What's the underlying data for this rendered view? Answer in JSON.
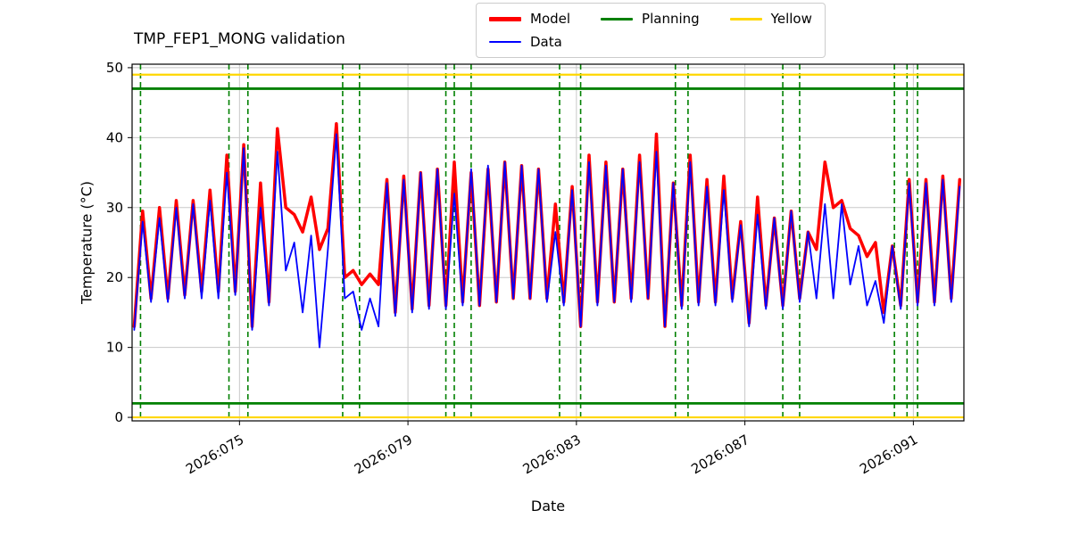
{
  "chart_data": {
    "type": "line",
    "title": "TMP_FEP1_MONG validation",
    "xlabel": "Date",
    "ylabel": "Temperature (°C)",
    "grid": true,
    "xlim": [
      72.45,
      92.2
    ],
    "ylim": [
      -0.5,
      50.5
    ],
    "xticks": {
      "values": [
        75,
        79,
        83,
        87,
        91
      ],
      "labels": [
        "2026:075",
        "2026:079",
        "2026:083",
        "2026:087",
        "2026:091"
      ]
    },
    "yticks": {
      "values": [
        0,
        10,
        20,
        30,
        40,
        50
      ],
      "labels": [
        "0",
        "10",
        "20",
        "30",
        "40",
        "50"
      ]
    },
    "x": [
      72.5,
      72.7,
      72.9,
      73.1,
      73.3,
      73.5,
      73.7,
      73.9,
      74.1,
      74.3,
      74.5,
      74.7,
      74.9,
      75.1,
      75.3,
      75.5,
      75.7,
      75.9,
      76.1,
      76.3,
      76.5,
      76.7,
      76.9,
      77.1,
      77.3,
      77.5,
      77.7,
      77.9,
      78.1,
      78.3,
      78.5,
      78.7,
      78.9,
      79.1,
      79.3,
      79.5,
      79.7,
      79.9,
      80.1,
      80.3,
      80.5,
      80.7,
      80.9,
      81.1,
      81.3,
      81.5,
      81.7,
      81.9,
      82.1,
      82.3,
      82.5,
      82.7,
      82.9,
      83.1,
      83.3,
      83.5,
      83.7,
      83.9,
      84.1,
      84.3,
      84.5,
      84.7,
      84.9,
      85.1,
      85.3,
      85.5,
      85.7,
      85.9,
      86.1,
      86.3,
      86.5,
      86.7,
      86.9,
      87.1,
      87.3,
      87.5,
      87.7,
      87.9,
      88.1,
      88.3,
      88.5,
      88.7,
      88.9,
      89.1,
      89.3,
      89.5,
      89.7,
      89.9,
      90.1,
      90.3,
      90.5,
      90.7,
      90.9,
      91.1,
      91.3,
      91.5,
      91.7,
      91.9,
      92.1
    ],
    "series": [
      {
        "name": "Model",
        "color": "#ff0000",
        "width": 3.5,
        "values": [
          13,
          29.5,
          17,
          30,
          17,
          31,
          17.5,
          31,
          18,
          32.5,
          18,
          37.5,
          18,
          39,
          13,
          33.5,
          16.5,
          41.3,
          30,
          29,
          26.5,
          31.5,
          24,
          27,
          42,
          20,
          21,
          19,
          20.5,
          19,
          34,
          15,
          34.5,
          15.5,
          35,
          16,
          35.5,
          16,
          36.5,
          16.5,
          35,
          16,
          35.5,
          16.5,
          36.5,
          17,
          36,
          17,
          35.5,
          17,
          30.5,
          16.5,
          33,
          13,
          37.5,
          16.5,
          36.5,
          16.5,
          35.5,
          17,
          37.5,
          17,
          40.5,
          13,
          33.5,
          16,
          37.5,
          16.5,
          34,
          16.5,
          34.5,
          17,
          28,
          13.5,
          31.5,
          16,
          28.5,
          16,
          29.5,
          17,
          26.5,
          24,
          36.5,
          30,
          31,
          27,
          26,
          23,
          25,
          15,
          24.5,
          16,
          34,
          16.5,
          34,
          16.5,
          34.5,
          17,
          34
        ]
      },
      {
        "name": "Data",
        "color": "#0000ff",
        "width": 1.8,
        "values": [
          12.5,
          28,
          16.5,
          28.5,
          16.5,
          30,
          17,
          30.5,
          17,
          31,
          17,
          35,
          17.5,
          38.5,
          12.5,
          30,
          16,
          38,
          21,
          25,
          15,
          26,
          10,
          24,
          40.5,
          17,
          18,
          12.5,
          17,
          13,
          33.5,
          14.5,
          34,
          15,
          35,
          15.5,
          35.5,
          15.5,
          32,
          16,
          35.5,
          16,
          36,
          16.5,
          36.5,
          17,
          36,
          17,
          35.5,
          16.5,
          26.5,
          16,
          32.5,
          13,
          36.5,
          16,
          36,
          16.5,
          35.5,
          16.5,
          36.5,
          17,
          38,
          13,
          33.5,
          15.5,
          36.5,
          16,
          33,
          16,
          32.5,
          16.5,
          27.5,
          13,
          29,
          15.5,
          28.5,
          15.5,
          29.5,
          16.5,
          26.5,
          17,
          30.5,
          17,
          30.5,
          19,
          24.5,
          16,
          19.5,
          13.5,
          24.5,
          15.5,
          33.5,
          16,
          33.5,
          16,
          34,
          16.5,
          33
        ]
      }
    ],
    "hlines": [
      {
        "name": "Yellow",
        "y": 49,
        "color": "#ffd700",
        "width": 2.2
      },
      {
        "name": "Yellow",
        "y": 0,
        "color": "#ffd700",
        "width": 2.2
      },
      {
        "name": "Planning",
        "y": 47,
        "color": "#008000",
        "width": 2.8
      },
      {
        "name": "Planning",
        "y": 2,
        "color": "#008000",
        "width": 2.8
      }
    ],
    "vlines": {
      "color": "#008000",
      "dash": "6,4",
      "width": 1.6,
      "x": [
        72.65,
        74.75,
        75.2,
        77.45,
        77.85,
        79.9,
        80.1,
        80.5,
        82.6,
        83.1,
        85.35,
        85.65,
        87.9,
        88.3,
        90.55,
        90.85,
        91.1
      ]
    },
    "legend": {
      "items": [
        {
          "label": "Model",
          "color": "#ff0000",
          "thickness": 5,
          "col": 1,
          "row": 1
        },
        {
          "label": "Data",
          "color": "#0000ff",
          "thickness": 2,
          "col": 1,
          "row": 2
        },
        {
          "label": "Planning",
          "color": "#008000",
          "thickness": 3,
          "col": 2,
          "row": 1
        },
        {
          "label": "Yellow",
          "color": "#ffd700",
          "thickness": 3,
          "col": 3,
          "row": 1
        }
      ]
    }
  }
}
